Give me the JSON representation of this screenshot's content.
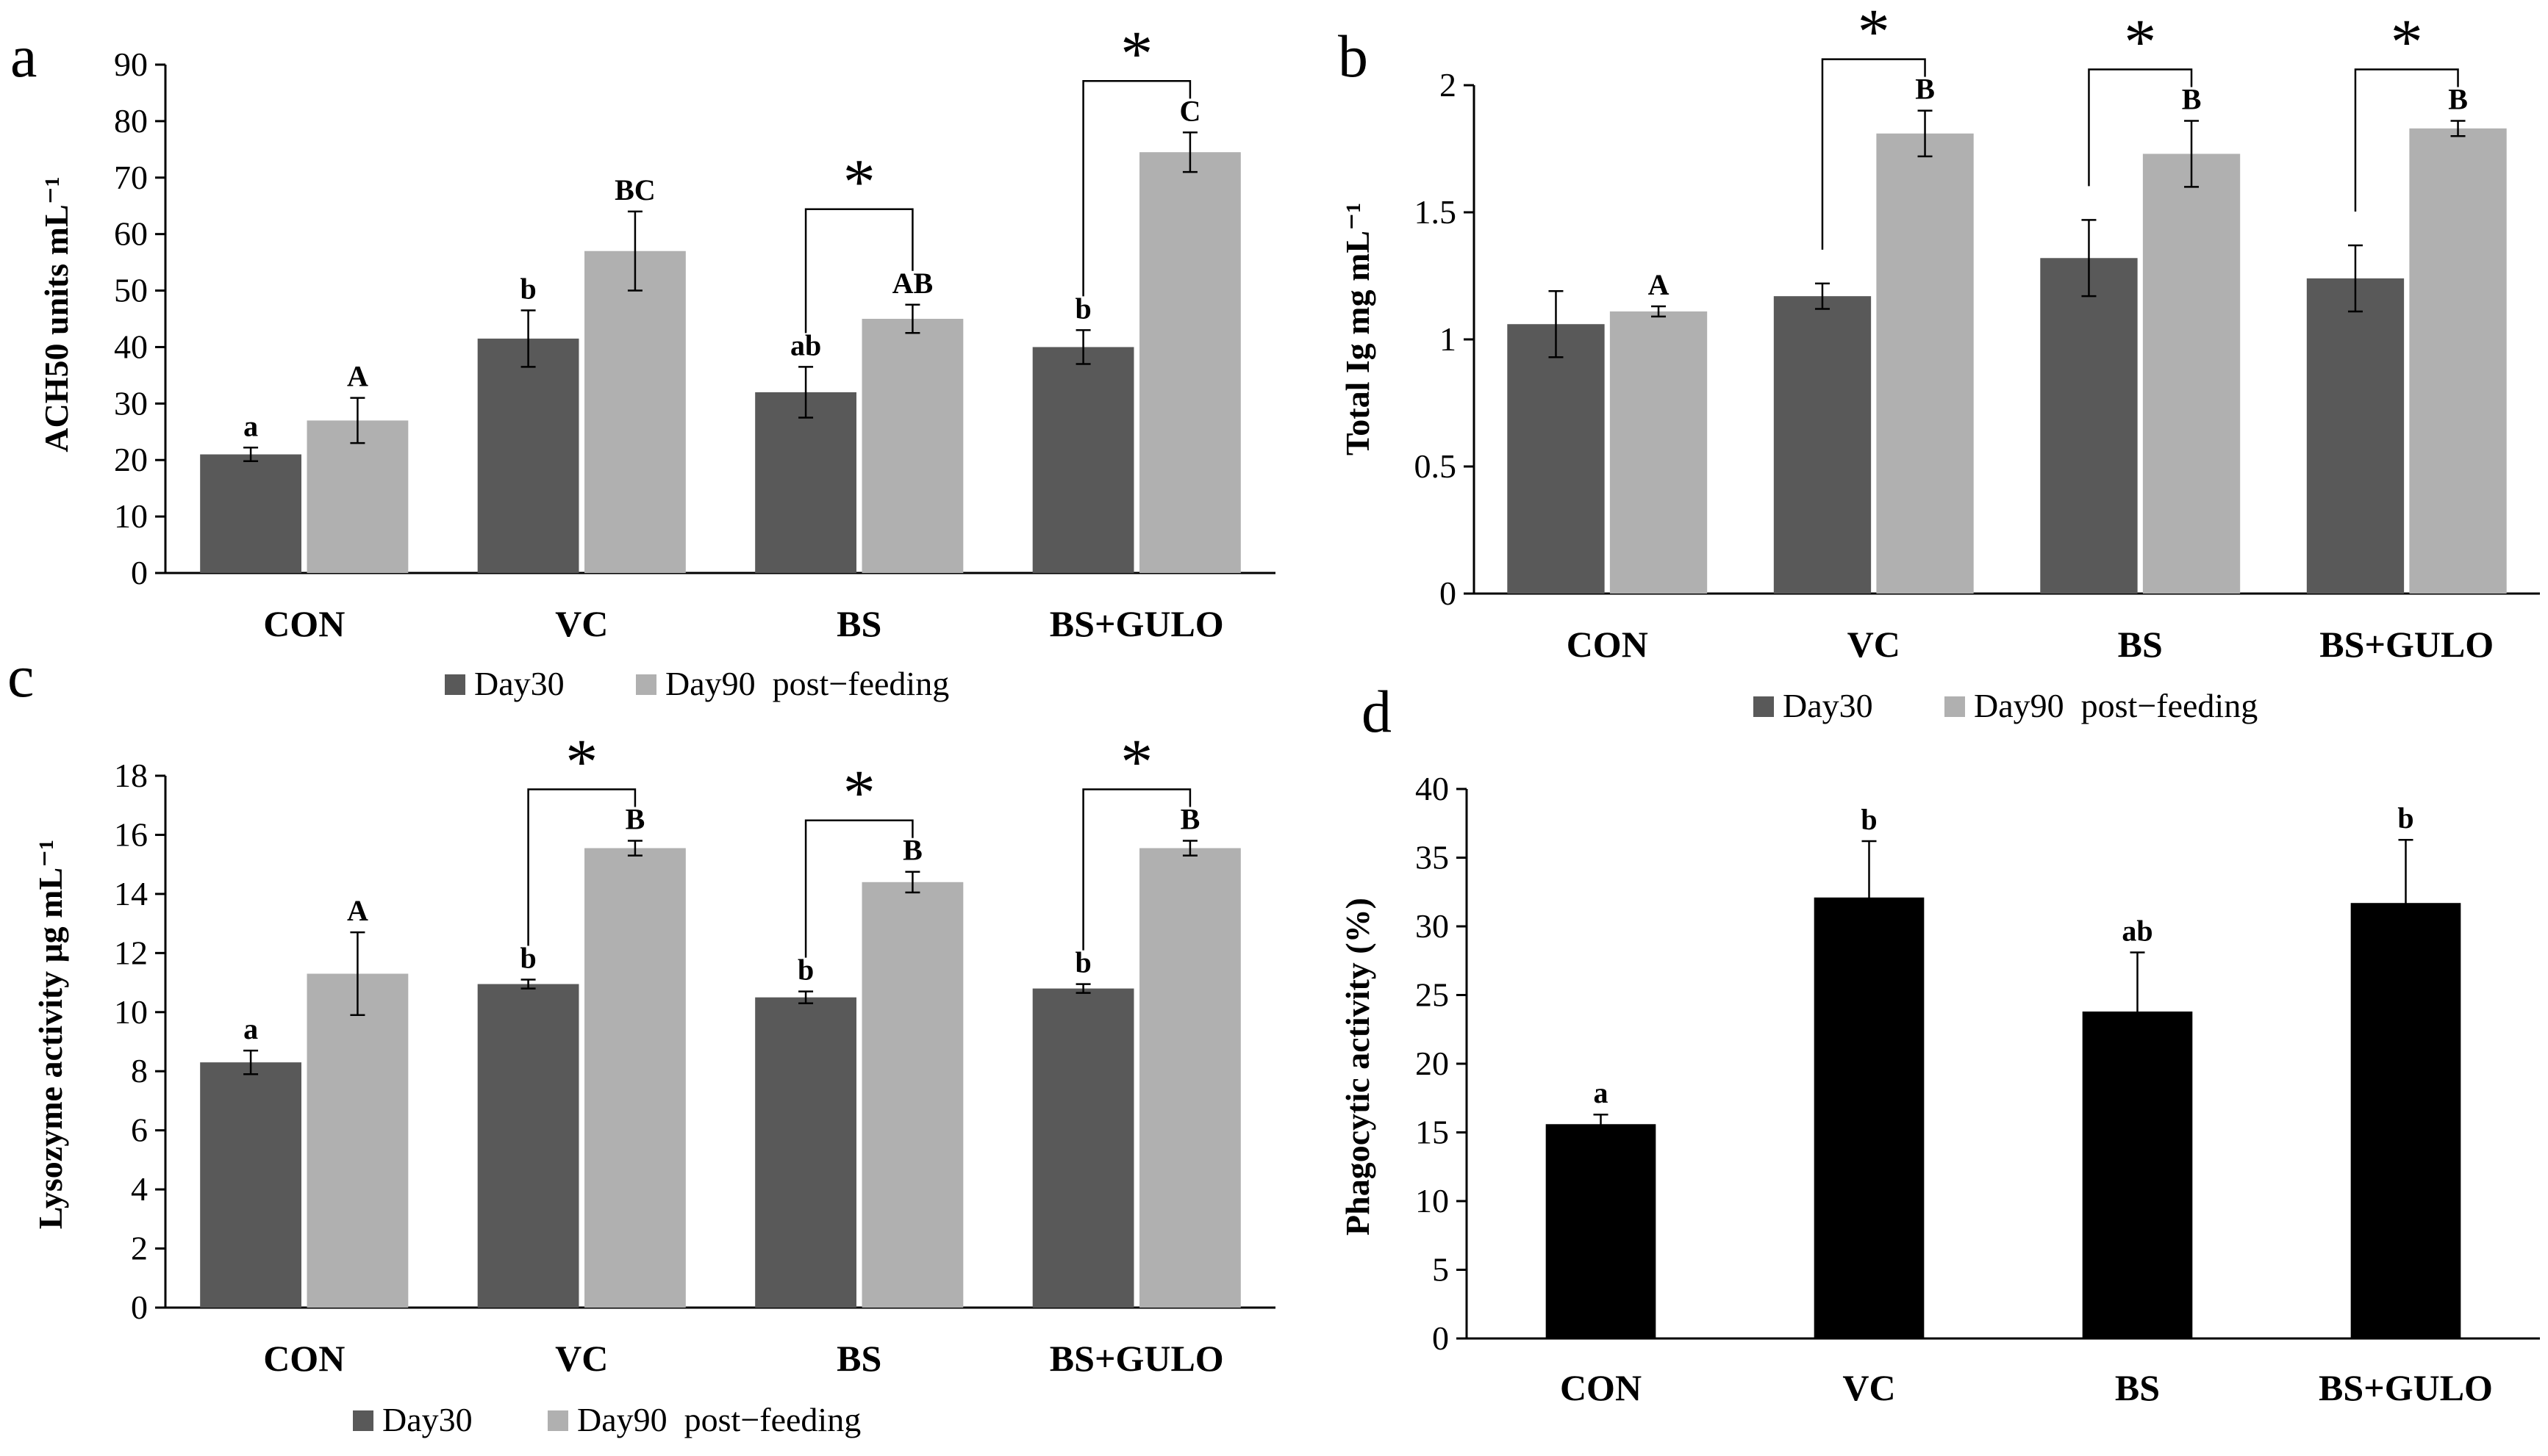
{
  "figure": {
    "background": "#ffffff",
    "colors": {
      "day30": "#595959",
      "day90": "#b0b0b0",
      "single": "#000000",
      "axis": "#000000"
    }
  },
  "chart_data": [
    {
      "panel": "a",
      "type": "bar",
      "title": "",
      "xlabel": "",
      "ylabel": "ACH50 units mL⁻¹",
      "ylim": [
        0,
        90
      ],
      "yticks": [
        0,
        10,
        20,
        30,
        40,
        50,
        60,
        70,
        80,
        90
      ],
      "ytick_labels": [
        "0",
        "10",
        "20",
        "30",
        "40",
        "50",
        "60",
        "70",
        "80",
        "90"
      ],
      "categories": [
        "CON",
        "VC",
        "BS",
        "BS+GULO"
      ],
      "series": [
        {
          "name": "Day30",
          "color": "#595959",
          "values": [
            21,
            41.5,
            32,
            40
          ],
          "errors": [
            1.2,
            5,
            4.5,
            3
          ],
          "letters": [
            "a",
            "b",
            "ab",
            "b"
          ]
        },
        {
          "name": "Day90",
          "color": "#b0b0b0",
          "values": [
            27,
            57,
            45,
            74.5
          ],
          "errors": [
            4,
            7,
            2.5,
            3.5
          ],
          "letters": [
            "A",
            "BC",
            "AB",
            "C"
          ]
        }
      ],
      "significance": [
        {
          "category_index": 2,
          "label": "*"
        },
        {
          "category_index": 3,
          "label": "*"
        }
      ],
      "legend": {
        "entries": [
          "Day30",
          "Day90  post−feeding"
        ],
        "position": "bottom"
      }
    },
    {
      "panel": "b",
      "type": "bar",
      "title": "",
      "xlabel": "",
      "ylabel": "Total Ig mg mL⁻¹",
      "ylim": [
        0,
        2
      ],
      "yticks": [
        0,
        0.5,
        1,
        1.5,
        2
      ],
      "ytick_labels": [
        "0",
        "0.5",
        "1",
        "1.5",
        "2"
      ],
      "categories": [
        "CON",
        "VC",
        "BS",
        "BS+GULO"
      ],
      "series": [
        {
          "name": "Day30",
          "color": "#595959",
          "values": [
            1.06,
            1.17,
            1.32,
            1.24
          ],
          "errors": [
            0.13,
            0.05,
            0.15,
            0.13
          ],
          "letters": [
            "",
            "",
            "",
            ""
          ]
        },
        {
          "name": "Day90",
          "color": "#b0b0b0",
          "values": [
            1.11,
            1.81,
            1.73,
            1.83
          ],
          "errors": [
            0.02,
            0.09,
            0.13,
            0.03
          ],
          "letters": [
            "A",
            "B",
            "B",
            "B"
          ]
        }
      ],
      "significance": [
        {
          "category_index": 1,
          "label": "*"
        },
        {
          "category_index": 2,
          "label": "*"
        },
        {
          "category_index": 3,
          "label": "*"
        }
      ],
      "legend": {
        "entries": [
          "Day30",
          "Day90  post−feeding"
        ],
        "position": "bottom"
      }
    },
    {
      "panel": "c",
      "type": "bar",
      "title": "",
      "xlabel": "",
      "ylabel": "Lysozyme activity μg mL⁻¹",
      "ylim": [
        0,
        18
      ],
      "yticks": [
        0,
        2,
        4,
        6,
        8,
        10,
        12,
        14,
        16,
        18
      ],
      "ytick_labels": [
        "0",
        "2",
        "4",
        "6",
        "8",
        "10",
        "12",
        "14",
        "16",
        "18"
      ],
      "categories": [
        "CON",
        "VC",
        "BS",
        "BS+GULO"
      ],
      "series": [
        {
          "name": "Day30",
          "color": "#595959",
          "values": [
            8.3,
            10.95,
            10.5,
            10.8
          ],
          "errors": [
            0.4,
            0.15,
            0.2,
            0.15
          ],
          "letters": [
            "a",
            "b",
            "b",
            "b"
          ]
        },
        {
          "name": "Day90",
          "color": "#b0b0b0",
          "values": [
            11.3,
            15.55,
            14.4,
            15.55
          ],
          "errors": [
            1.4,
            0.25,
            0.35,
            0.25
          ],
          "letters": [
            "A",
            "B",
            "B",
            "B"
          ]
        }
      ],
      "significance": [
        {
          "category_index": 1,
          "label": "*"
        },
        {
          "category_index": 2,
          "label": "*"
        },
        {
          "category_index": 3,
          "label": "*"
        }
      ],
      "legend": {
        "entries": [
          "Day30",
          "Day90  post−feeding"
        ],
        "position": "bottom"
      }
    },
    {
      "panel": "d",
      "type": "bar",
      "title": "",
      "xlabel": "",
      "ylabel": "Phagocytic  activity (%)",
      "ylim": [
        0,
        40
      ],
      "yticks": [
        0,
        5,
        10,
        15,
        20,
        25,
        30,
        35,
        40
      ],
      "ytick_labels": [
        "0",
        "5",
        "10",
        "15",
        "20",
        "25",
        "30",
        "35",
        "40"
      ],
      "categories": [
        "CON",
        "VC",
        "BS",
        "BS+GULO"
      ],
      "series": [
        {
          "name": "",
          "color": "#000000",
          "values": [
            15.6,
            32.1,
            23.8,
            31.7
          ],
          "errors": [
            0.7,
            4.1,
            4.3,
            4.6
          ],
          "letters": [
            "a",
            "b",
            "ab",
            "b"
          ]
        }
      ],
      "significance": [],
      "legend": null
    }
  ]
}
